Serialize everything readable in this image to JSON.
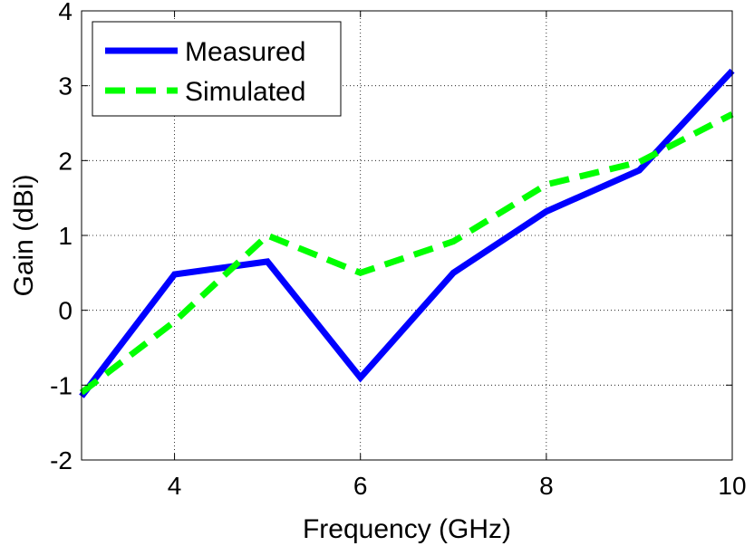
{
  "chart_data": {
    "type": "line",
    "xlabel": "Frequency (GHz)",
    "ylabel": "Gain (dBi)",
    "xlim": [
      3,
      10
    ],
    "ylim": [
      -2,
      4
    ],
    "xticks": [
      4,
      6,
      8,
      10
    ],
    "yticks": [
      -2,
      -1,
      0,
      1,
      2,
      3,
      4
    ],
    "grid": true,
    "legend_position": "top-left",
    "series": [
      {
        "name": "Measured",
        "color": "#0000ff",
        "style": "solid",
        "x": [
          3,
          4,
          5,
          6,
          7,
          8,
          9,
          10
        ],
        "y": [
          -1.15,
          0.48,
          0.65,
          -0.9,
          0.5,
          1.32,
          1.87,
          3.2
        ]
      },
      {
        "name": "Simulated",
        "color": "#00ff00",
        "style": "dashed",
        "x": [
          3,
          4,
          5,
          6,
          7,
          8,
          9,
          10
        ],
        "y": [
          -1.1,
          -0.15,
          1.0,
          0.5,
          0.92,
          1.68,
          1.98,
          2.62
        ]
      }
    ]
  }
}
